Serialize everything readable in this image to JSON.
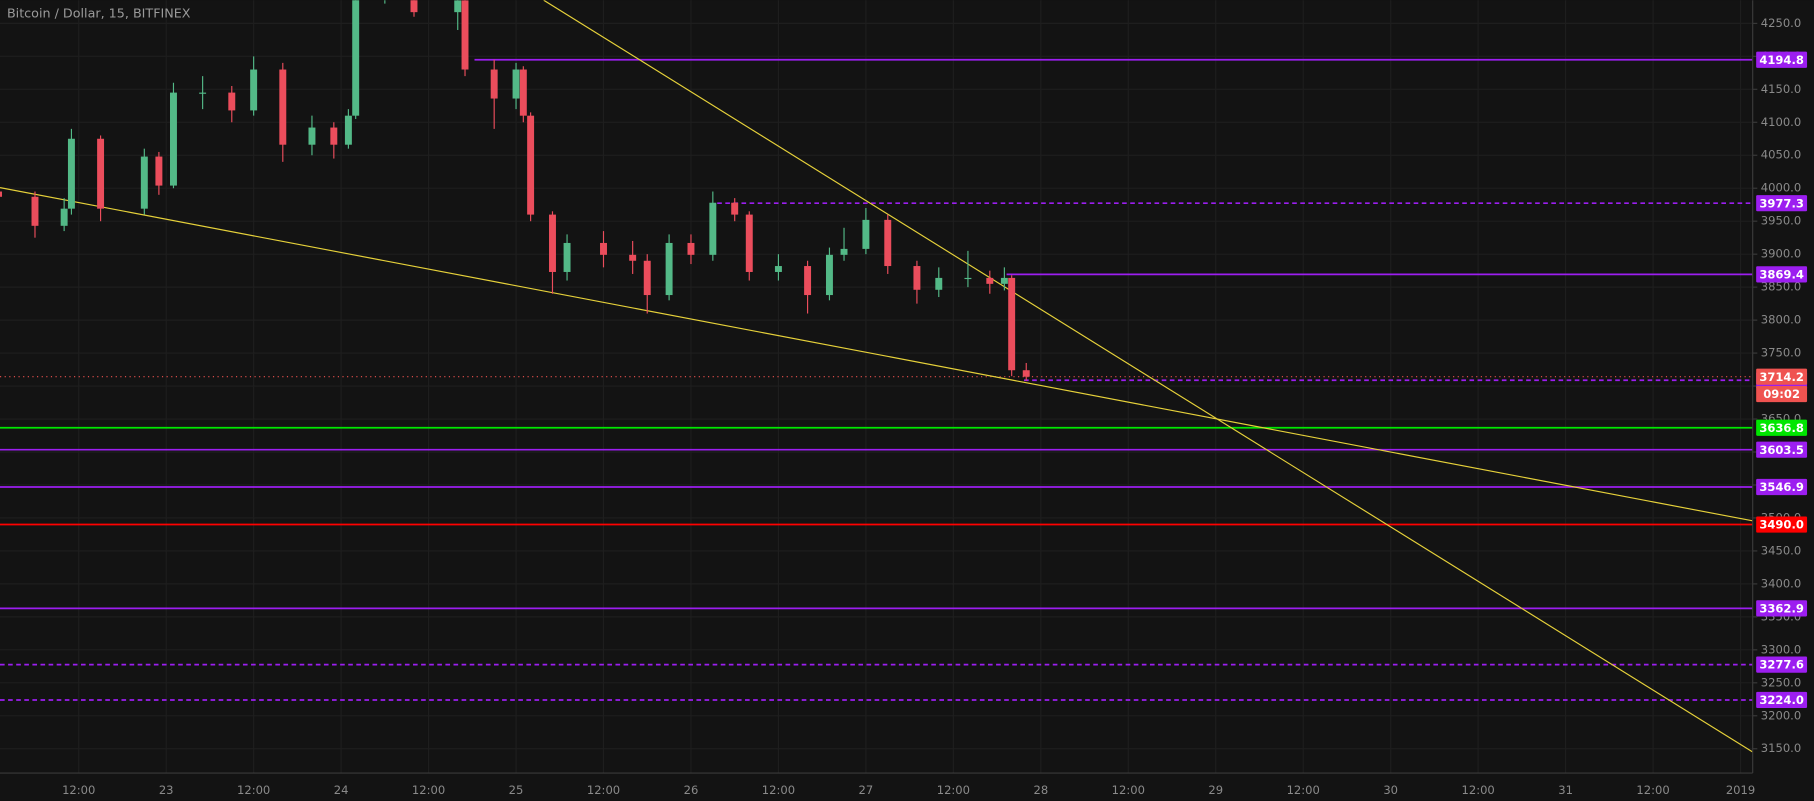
{
  "chart_data": {
    "type": "candlestick",
    "title": "Bitcoin / Dollar, 15, BITFINEX",
    "up_color": "#53b987",
    "down_color": "#eb4d5c",
    "grid": true,
    "xlim": [
      "Dec 22 01:12",
      "Jan 01 01:40"
    ],
    "ylim": [
      3113.2,
      4285.1
    ],
    "xticks": [
      {
        "value": "Dec 22 12:00",
        "label": "12:00"
      },
      {
        "value": "Dec 23 00:00",
        "label": "23"
      },
      {
        "value": "Dec 23 12:00",
        "label": "12:00"
      },
      {
        "value": "Dec 24 00:00",
        "label": "24"
      },
      {
        "value": "Dec 24 12:00",
        "label": "12:00"
      },
      {
        "value": "Dec 25 00:00",
        "label": "25"
      },
      {
        "value": "Dec 25 12:00",
        "label": "12:00"
      },
      {
        "value": "Dec 26 00:00",
        "label": "26"
      },
      {
        "value": "Dec 26 12:00",
        "label": "12:00"
      },
      {
        "value": "Dec 27 00:00",
        "label": "27"
      },
      {
        "value": "Dec 27 12:00",
        "label": "12:00"
      },
      {
        "value": "Dec 28 00:00",
        "label": "28"
      },
      {
        "value": "Dec 28 12:00",
        "label": "12:00"
      },
      {
        "value": "Dec 29 00:00",
        "label": "29"
      },
      {
        "value": "Dec 29 12:00",
        "label": "12:00"
      },
      {
        "value": "Dec 30 00:00",
        "label": "30"
      },
      {
        "value": "Dec 30 12:00",
        "label": "12:00"
      },
      {
        "value": "Dec 31 00:00",
        "label": "31"
      },
      {
        "value": "Dec 31 12:00",
        "label": "12:00"
      },
      {
        "value": "Jan 01 00:00",
        "label": "2019"
      }
    ],
    "yticks": [
      {
        "value": 4250,
        "label": "4250.0"
      },
      {
        "value": 4200,
        "label": "4200.0"
      },
      {
        "value": 4150,
        "label": "4150.0"
      },
      {
        "value": 4100,
        "label": "4100.0"
      },
      {
        "value": 4050,
        "label": "4050.0"
      },
      {
        "value": 4000,
        "label": "4000.0"
      },
      {
        "value": 3950,
        "label": "3950.0"
      },
      {
        "value": 3900,
        "label": "3900.0"
      },
      {
        "value": 3850,
        "label": "3850.0"
      },
      {
        "value": 3800,
        "label": "3800.0"
      },
      {
        "value": 3750,
        "label": "3750.0"
      },
      {
        "value": 3700,
        "label": "3700.0"
      },
      {
        "value": 3650,
        "label": "3650.0"
      },
      {
        "value": 3600,
        "label": "3600.0"
      },
      {
        "value": 3550,
        "label": "3550.0"
      },
      {
        "value": 3500,
        "label": "3500.0"
      },
      {
        "value": 3450,
        "label": "3450.0"
      },
      {
        "value": 3400,
        "label": "3400.0"
      },
      {
        "value": 3350,
        "label": "3350.0"
      },
      {
        "value": 3300,
        "label": "3300.0"
      },
      {
        "value": 3250,
        "label": "3250.0"
      },
      {
        "value": 3200,
        "label": "3200.0"
      },
      {
        "value": 3150,
        "label": "3150.0"
      }
    ],
    "candles": {
      "x": [
        "Dec 22 01:00",
        "Dec 22 06:00",
        "Dec 22 10:00",
        "Dec 22 11:00",
        "Dec 22 15:00",
        "Dec 22 21:00",
        "Dec 22 23:00",
        "Dec 23 01:00",
        "Dec 23 05:00",
        "Dec 23 09:00",
        "Dec 23 12:00",
        "Dec 23 16:00",
        "Dec 23 20:00",
        "Dec 23 23:00",
        "Dec 24 01:00",
        "Dec 24 02:00",
        "Dec 24 06:00",
        "Dec 24 10:00",
        "Dec 24 16:00",
        "Dec 24 17:00",
        "Dec 24 21:00",
        "Dec 25 00:00",
        "Dec 25 01:00",
        "Dec 25 02:00",
        "Dec 25 05:00",
        "Dec 25 07:00",
        "Dec 25 12:00",
        "Dec 25 16:00",
        "Dec 25 18:00",
        "Dec 25 21:00",
        "Dec 26 00:00",
        "Dec 26 03:00",
        "Dec 26 06:00",
        "Dec 26 08:00",
        "Dec 26 12:00",
        "Dec 26 16:00",
        "Dec 26 19:00",
        "Dec 26 21:00",
        "Dec 27 00:00",
        "Dec 27 03:00",
        "Dec 27 07:00",
        "Dec 27 10:00",
        "Dec 27 14:00",
        "Dec 27 17:00",
        "Dec 27 19:00",
        "Dec 27 20:00",
        "Dec 27 22:00"
      ],
      "open": [
        3995,
        3987,
        3943,
        3969,
        4075,
        3969,
        4048,
        4004,
        4145,
        4145,
        4118,
        4180,
        4066,
        4092,
        4066,
        4110,
        4290,
        4340,
        4267,
        4285,
        4180,
        4136,
        4180,
        4110,
        3960,
        3873,
        3917,
        3899,
        3890,
        3838,
        3917,
        3899,
        3978,
        3960,
        3873,
        3882,
        3838,
        3899,
        3908,
        3952,
        3882,
        3846,
        3864,
        3864,
        3855,
        3864,
        3724
      ],
      "high": [
        4010,
        3995,
        3985,
        4090,
        4080,
        4060,
        4055,
        4160,
        4170,
        4155,
        4200,
        4190,
        4110,
        4100,
        4120,
        4300,
        4360,
        4350,
        4300,
        4290,
        4195,
        4190,
        4185,
        4115,
        3965,
        3930,
        3935,
        3920,
        3900,
        3930,
        3930,
        3995,
        3985,
        3965,
        3900,
        3890,
        3910,
        3940,
        3970,
        3960,
        3890,
        3880,
        3905,
        3875,
        3880,
        3868,
        3735
      ],
      "low": [
        3975,
        3925,
        3935,
        3960,
        3950,
        3960,
        3990,
        4000,
        4120,
        4100,
        4110,
        4040,
        4050,
        4045,
        4060,
        4105,
        4280,
        4260,
        4240,
        4170,
        4090,
        4120,
        4100,
        3950,
        3840,
        3860,
        3880,
        3870,
        3810,
        3830,
        3885,
        3890,
        3950,
        3860,
        3860,
        3810,
        3830,
        3890,
        3900,
        3870,
        3825,
        3835,
        3850,
        3840,
        3845,
        3715,
        3708
      ],
      "close": [
        3987,
        3943,
        3969,
        4075,
        3969,
        4048,
        4004,
        4145,
        4145,
        4118,
        4180,
        4066,
        4092,
        4066,
        4110,
        4290,
        4340,
        4267,
        4285,
        4180,
        4136,
        4180,
        4110,
        3960,
        3873,
        3917,
        3899,
        3890,
        3838,
        3917,
        3899,
        3978,
        3960,
        3873,
        3882,
        3838,
        3899,
        3908,
        3952,
        3882,
        3846,
        3864,
        3864,
        3855,
        3864,
        3724,
        3714.2
      ]
    },
    "trend_lines": [
      {
        "color": "#e6d13a",
        "x": [
          "Dec 22 01:12",
          "Jan 01 01:40"
        ],
        "values": [
          4000.9,
          3495.6
        ]
      },
      {
        "color": "#e6d13a",
        "x": [
          "Dec 25 03:48",
          "Jan 01 01:40"
        ],
        "values": [
          4285.1,
          3145
        ]
      }
    ],
    "levels": [
      {
        "value": 4194.8,
        "color": "#9c1ef0",
        "style": "solid",
        "start": "Dec 24 18:18"
      },
      {
        "value": 3977.3,
        "color": "#9c1ef0",
        "style": "dashed",
        "start": "Dec 26 03:36"
      },
      {
        "value": 3869.4,
        "color": "#9c1ef0",
        "style": "solid",
        "start": "Dec 27 19:18"
      },
      {
        "value": 3708.8,
        "color": "#9c1ef0",
        "style": "dashed",
        "start": "Dec 27 21:42"
      },
      {
        "value": 3636.8,
        "color": "#00e600",
        "style": "solid"
      },
      {
        "value": 3603.5,
        "color": "#9c1ef0",
        "style": "solid"
      },
      {
        "value": 3546.9,
        "color": "#9c1ef0",
        "style": "solid"
      },
      {
        "value": 3490,
        "label": "3490.0",
        "color": "#ff0000",
        "style": "solid"
      },
      {
        "value": 3362.9,
        "color": "#9c1ef0",
        "style": "solid"
      },
      {
        "value": 3277.6,
        "color": "#9c1ef0",
        "style": "dashed"
      },
      {
        "value": 3224,
        "label": "3224.0",
        "color": "#9c1ef0",
        "style": "dashed"
      }
    ],
    "last_price": {
      "value": 3714.2,
      "countdown": "09:02",
      "color": "#ef5350"
    }
  }
}
